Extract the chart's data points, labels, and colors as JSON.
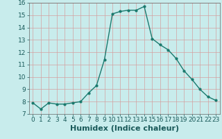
{
  "x": [
    0,
    1,
    2,
    3,
    4,
    5,
    6,
    7,
    8,
    9,
    10,
    11,
    12,
    13,
    14,
    15,
    16,
    17,
    18,
    19,
    20,
    21,
    22,
    23
  ],
  "y": [
    7.9,
    7.4,
    7.9,
    7.8,
    7.8,
    7.9,
    8.0,
    8.7,
    9.3,
    11.4,
    15.1,
    15.3,
    15.4,
    15.4,
    15.7,
    13.1,
    12.6,
    12.2,
    11.5,
    10.5,
    9.8,
    9.0,
    8.4,
    8.1
  ],
  "xlabel": "Humidex (Indice chaleur)",
  "ylim": [
    7,
    16
  ],
  "xlim": [
    -0.5,
    23.5
  ],
  "yticks": [
    7,
    8,
    9,
    10,
    11,
    12,
    13,
    14,
    15,
    16
  ],
  "xticks": [
    0,
    1,
    2,
    3,
    4,
    5,
    6,
    7,
    8,
    9,
    10,
    11,
    12,
    13,
    14,
    15,
    16,
    17,
    18,
    19,
    20,
    21,
    22,
    23
  ],
  "line_color": "#1a7a6e",
  "marker": "o",
  "marker_size": 2.0,
  "bg_color": "#c8ecec",
  "grid_color": "#d4a0a0",
  "xlabel_fontsize": 8,
  "tick_fontsize": 6.5,
  "line_width": 1.0
}
